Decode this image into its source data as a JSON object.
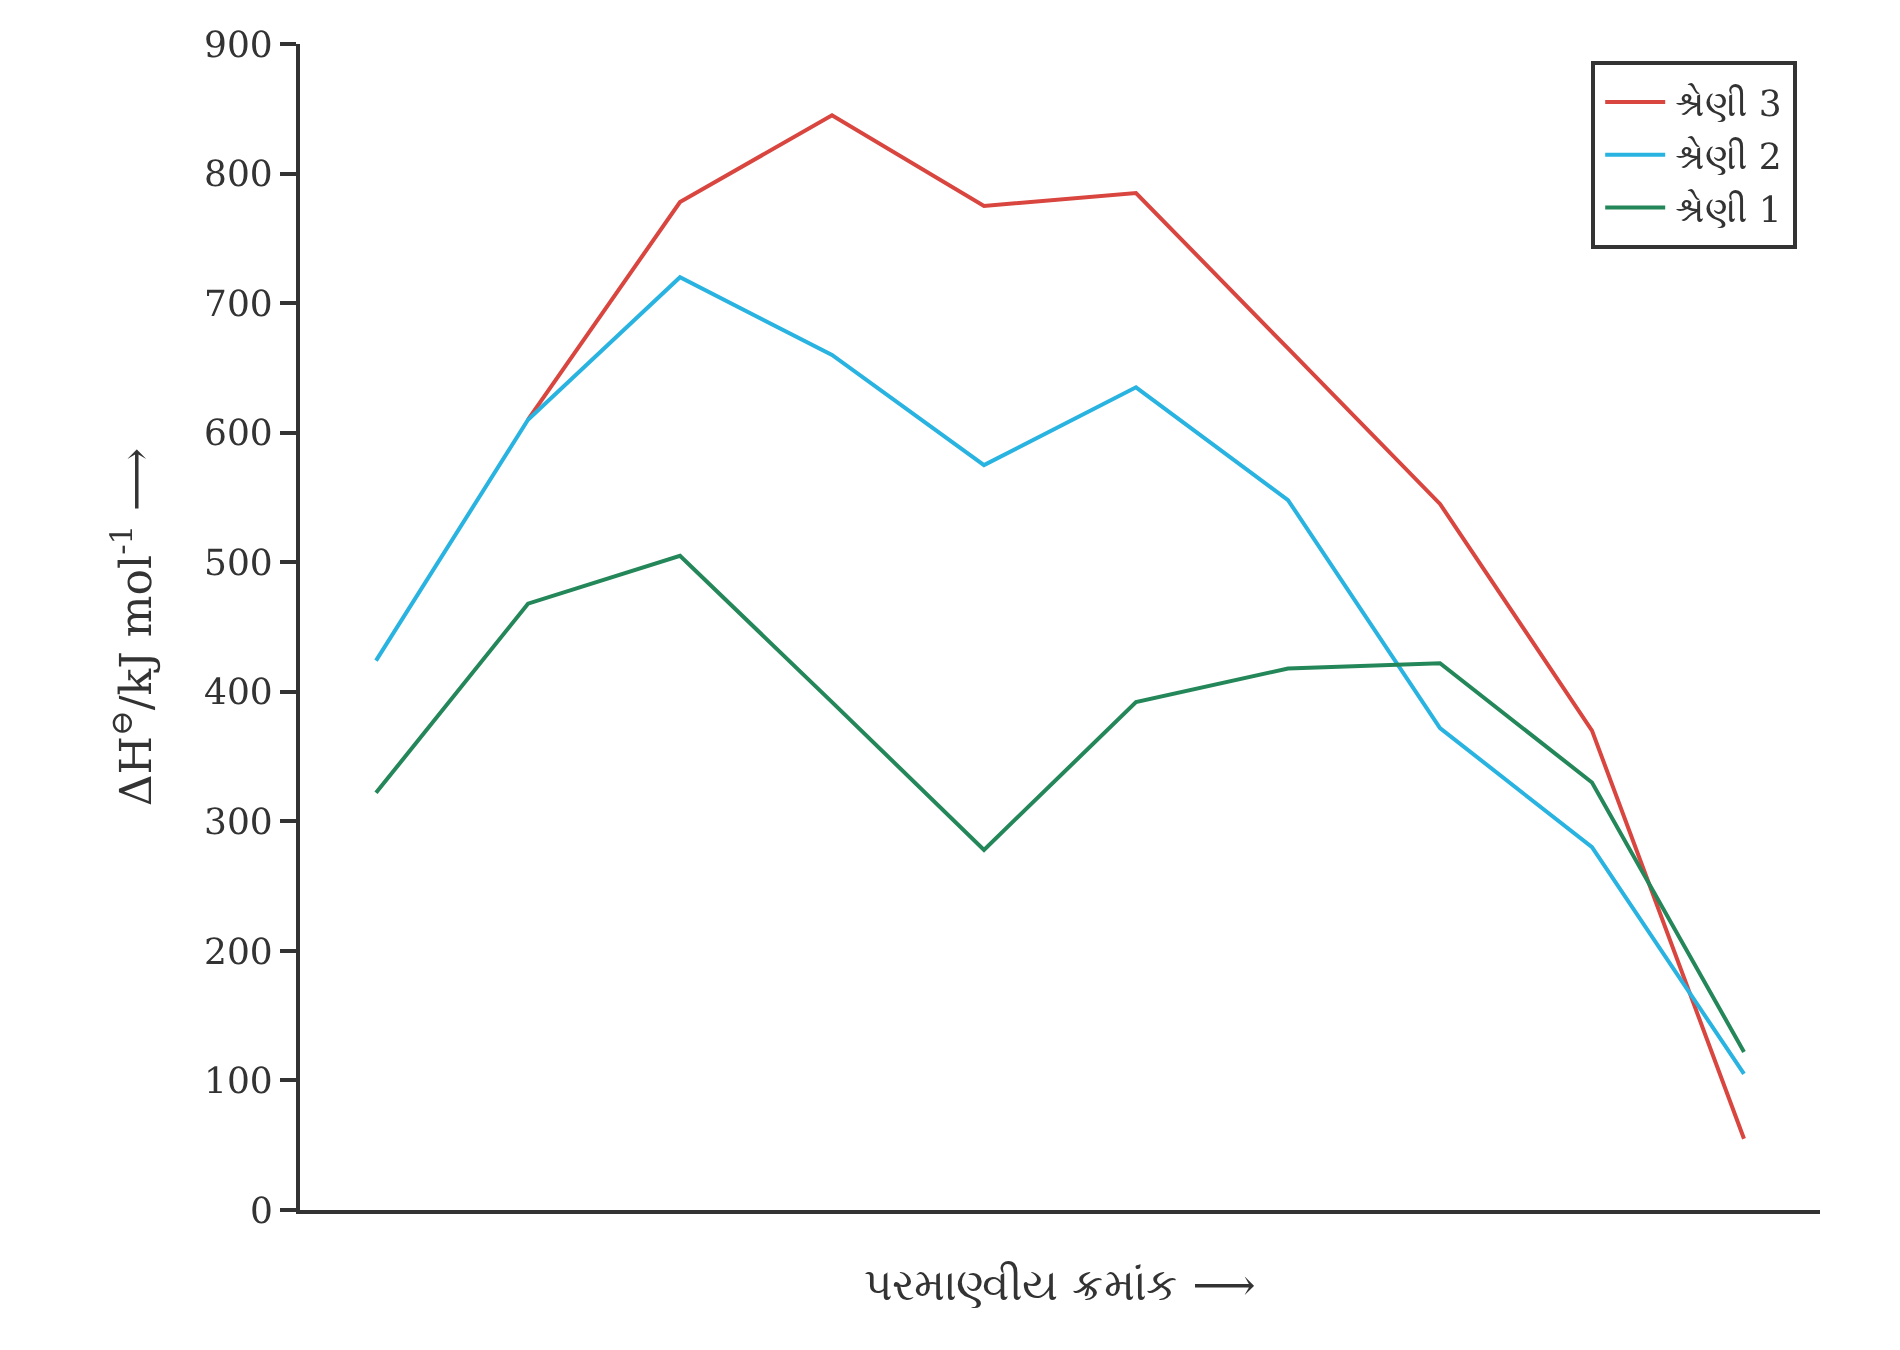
{
  "chart_data": {
    "type": "line",
    "xlabel": "પરમાણ્વીય ક્રમાંક ⟶",
    "ylabel": "ΔH$^{⊖}$/kJ mol$^{-1}$ ⟶",
    "categories": [
      null,
      null,
      null,
      null,
      null,
      null,
      null,
      null,
      null,
      null
    ],
    "series": [
      {
        "name": "શ્રેણી 3",
        "color": "#d9453f",
        "values": [
          null,
          610,
          778,
          845,
          775,
          785,
          665,
          545,
          370,
          55
        ]
      },
      {
        "name": "શ્રેણી 2",
        "color": "#29b3e0",
        "values": [
          424,
          610,
          720,
          660,
          575,
          635,
          548,
          372,
          280,
          105
        ]
      },
      {
        "name": "શ્રેણી 1",
        "color": "#24875a",
        "values": [
          322,
          468,
          505,
          392,
          278,
          392,
          418,
          422,
          330,
          122
        ]
      }
    ],
    "ylim": [
      0,
      900
    ],
    "yticks": [
      0,
      100,
      200,
      300,
      400,
      500,
      600,
      700,
      800,
      900
    ],
    "legend": "top right",
    "marker": "none",
    "line_style": "solid"
  }
}
